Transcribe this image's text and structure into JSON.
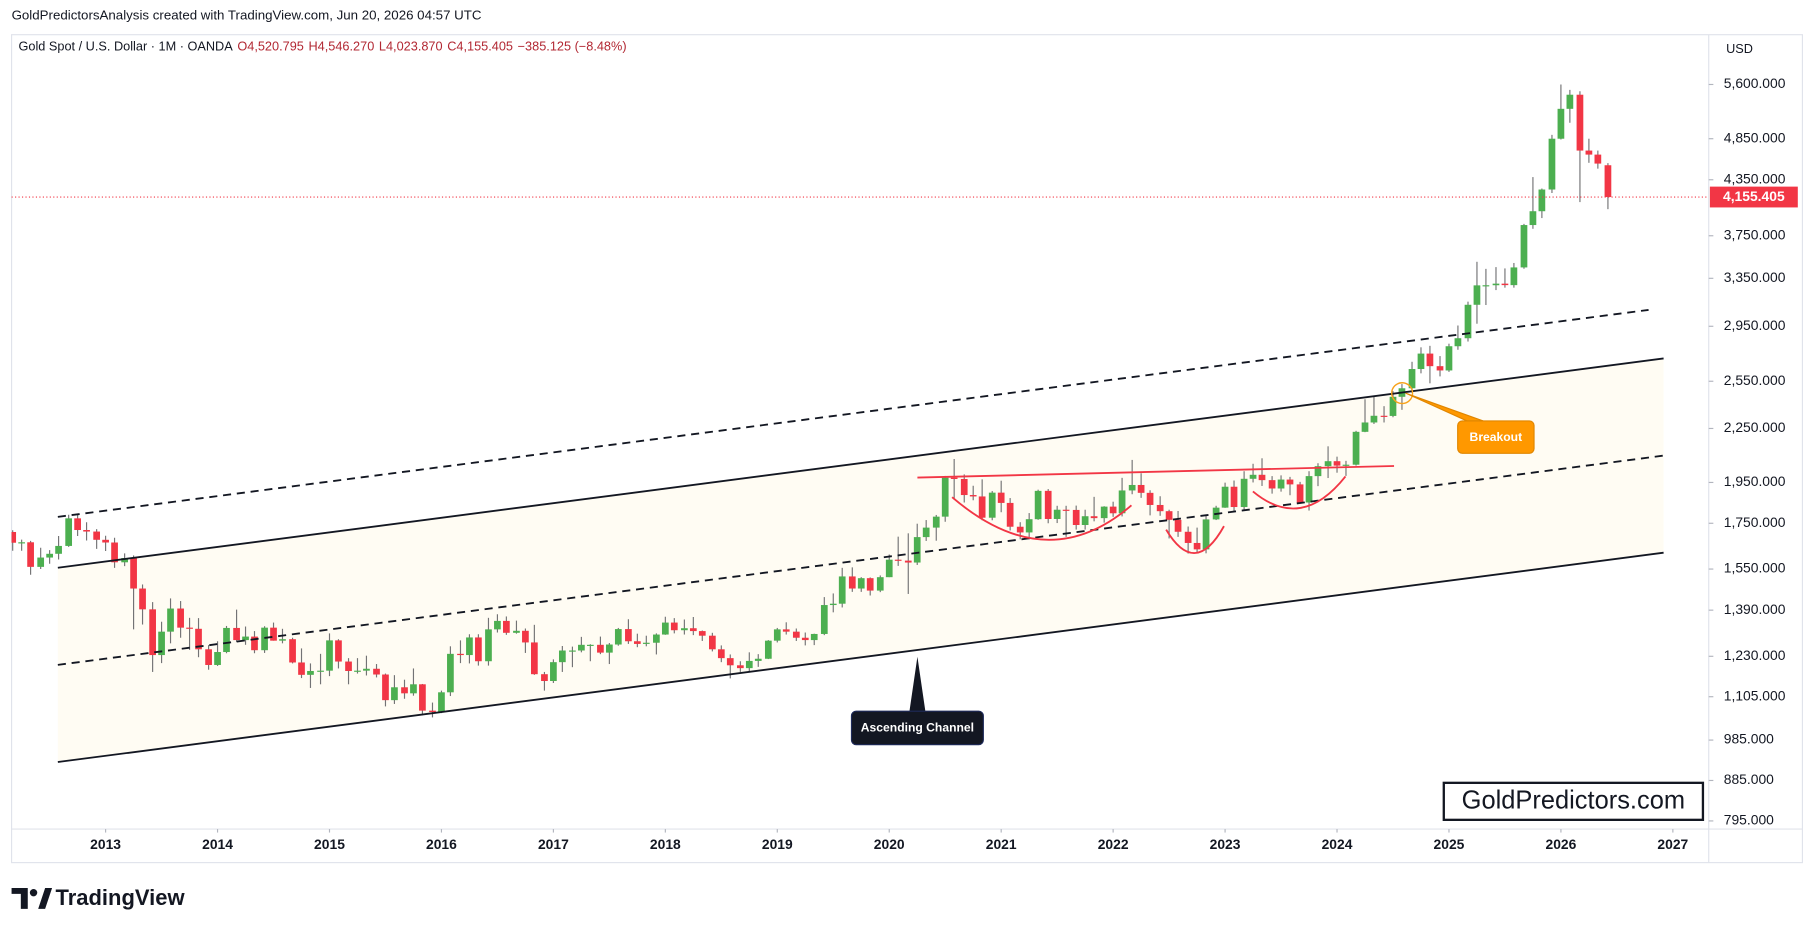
{
  "attribution": "GoldPredictorsAnalysis created with TradingView.com, Jun 20, 2026 04:57 UTC",
  "brand": "TradingView",
  "chart_data": {
    "type": "candlestick",
    "title": "Gold Spot / U.S. Dollar · 1M · OANDA",
    "ohlc_labels": [
      "O4,520.795",
      "H4,546.270",
      "L4,023.870",
      "C4,155.405",
      "−385.125 (−8.48%)"
    ],
    "currency": "USD",
    "last_price_label": "4,155.405",
    "annotations": {
      "breakout": "Breakout",
      "channel": "Ascending Channel",
      "watermark": "GoldPredictors.com"
    },
    "up_color": "#4caf50",
    "down_color": "#f23645",
    "wick_color": "#737375",
    "last_price_color": "#f23645",
    "log_scale": true,
    "grid": false,
    "xlim": [
      2012.16,
      2027.31
    ],
    "xticks": [
      2013,
      2014,
      2015,
      2016,
      2017,
      2018,
      2019,
      2020,
      2021,
      2022,
      2023,
      2024,
      2025,
      2026,
      2027
    ],
    "ylim": [
      778,
      6390
    ],
    "yticks": [
      {
        "value": 795,
        "label": "795.000"
      },
      {
        "value": 885,
        "label": "885.000"
      },
      {
        "value": 985,
        "label": "985.000"
      },
      {
        "value": 1105,
        "label": "1,105.000"
      },
      {
        "value": 1230,
        "label": "1,230.000"
      },
      {
        "value": 1390,
        "label": "1,390.000"
      },
      {
        "value": 1550,
        "label": "1,550.000"
      },
      {
        "value": 1750,
        "label": "1,750.000"
      },
      {
        "value": 1950,
        "label": "1,950.000"
      },
      {
        "value": 2250,
        "label": "2,250.000"
      },
      {
        "value": 2550,
        "label": "2,550.000"
      },
      {
        "value": 2950,
        "label": "2,950.000"
      },
      {
        "value": 3350,
        "label": "3,350.000"
      },
      {
        "value": 3750,
        "label": "3,750.000"
      },
      {
        "value": 4350,
        "label": "4,350.000"
      },
      {
        "value": 4850,
        "label": "4,850.000"
      },
      {
        "value": 5600,
        "label": "5,600.000"
      }
    ],
    "x": [
      2012.17,
      2012.25,
      2012.33,
      2012.42,
      2012.5,
      2012.58,
      2012.67,
      2012.75,
      2012.83,
      2012.92,
      2013,
      2013.08,
      2013.17,
      2013.25,
      2013.33,
      2013.42,
      2013.5,
      2013.58,
      2013.67,
      2013.75,
      2013.83,
      2013.92,
      2014,
      2014.08,
      2014.17,
      2014.25,
      2014.33,
      2014.42,
      2014.5,
      2014.58,
      2014.67,
      2014.75,
      2014.83,
      2014.92,
      2015,
      2015.08,
      2015.17,
      2015.25,
      2015.33,
      2015.42,
      2015.5,
      2015.58,
      2015.67,
      2015.75,
      2015.83,
      2015.92,
      2016,
      2016.08,
      2016.17,
      2016.25,
      2016.33,
      2016.42,
      2016.5,
      2016.58,
      2016.67,
      2016.75,
      2016.83,
      2016.92,
      2017,
      2017.08,
      2017.17,
      2017.25,
      2017.33,
      2017.42,
      2017.5,
      2017.58,
      2017.67,
      2017.75,
      2017.83,
      2017.92,
      2018,
      2018.08,
      2018.17,
      2018.25,
      2018.33,
      2018.42,
      2018.5,
      2018.58,
      2018.67,
      2018.75,
      2018.83,
      2018.92,
      2019,
      2019.08,
      2019.17,
      2019.25,
      2019.33,
      2019.42,
      2019.5,
      2019.58,
      2019.67,
      2019.75,
      2019.83,
      2019.92,
      2020,
      2020.08,
      2020.17,
      2020.25,
      2020.33,
      2020.42,
      2020.5,
      2020.58,
      2020.67,
      2020.75,
      2020.83,
      2020.92,
      2021,
      2021.08,
      2021.17,
      2021.25,
      2021.33,
      2021.42,
      2021.5,
      2021.58,
      2021.67,
      2021.75,
      2021.83,
      2021.92,
      2022,
      2022.08,
      2022.17,
      2022.25,
      2022.33,
      2022.42,
      2022.5,
      2022.58,
      2022.67,
      2022.75,
      2022.83,
      2022.92,
      2023,
      2023.08,
      2023.17,
      2023.25,
      2023.33,
      2023.42,
      2023.5,
      2023.58,
      2023.67,
      2023.75,
      2023.83,
      2023.92,
      2024,
      2024.08,
      2024.17,
      2024.25,
      2024.33,
      2024.42,
      2024.5,
      2024.58,
      2024.67,
      2024.75,
      2024.83,
      2024.92,
      2025,
      2025.08,
      2025.17,
      2025.25,
      2025.33,
      2025.42,
      2025.5,
      2025.58,
      2025.67,
      2025.75,
      2025.83,
      2025.92,
      2026,
      2026.08,
      2026.17,
      2026.25,
      2026.33,
      2026.42
    ],
    "ohlc": [
      [
        1710,
        1718,
        1627,
        1662
      ],
      [
        1662,
        1676,
        1627,
        1664
      ],
      [
        1664,
        1670,
        1527,
        1559
      ],
      [
        1559,
        1640,
        1550,
        1598
      ],
      [
        1598,
        1630,
        1572,
        1614
      ],
      [
        1614,
        1692,
        1590,
        1648
      ],
      [
        1648,
        1790,
        1644,
        1773
      ],
      [
        1773,
        1796,
        1692,
        1719
      ],
      [
        1719,
        1755,
        1672,
        1712
      ],
      [
        1712,
        1723,
        1635,
        1675
      ],
      [
        1675,
        1693,
        1626,
        1663
      ],
      [
        1663,
        1684,
        1555,
        1578
      ],
      [
        1578,
        1616,
        1562,
        1596
      ],
      [
        1596,
        1607,
        1321,
        1472
      ],
      [
        1472,
        1488,
        1338,
        1393
      ],
      [
        1393,
        1420,
        1180,
        1234
      ],
      [
        1234,
        1348,
        1208,
        1313
      ],
      [
        1313,
        1434,
        1273,
        1396
      ],
      [
        1396,
        1424,
        1292,
        1327
      ],
      [
        1327,
        1362,
        1251,
        1323
      ],
      [
        1323,
        1361,
        1227,
        1253
      ],
      [
        1253,
        1267,
        1187,
        1202
      ],
      [
        1202,
        1280,
        1199,
        1244
      ],
      [
        1244,
        1333,
        1240,
        1326
      ],
      [
        1326,
        1392,
        1277,
        1284
      ],
      [
        1284,
        1331,
        1268,
        1296
      ],
      [
        1296,
        1315,
        1240,
        1250
      ],
      [
        1250,
        1332,
        1241,
        1327
      ],
      [
        1327,
        1345,
        1282,
        1282
      ],
      [
        1282,
        1323,
        1273,
        1287
      ],
      [
        1287,
        1292,
        1207,
        1210
      ],
      [
        1210,
        1256,
        1161,
        1171
      ],
      [
        1171,
        1207,
        1131,
        1183
      ],
      [
        1183,
        1238,
        1142,
        1184
      ],
      [
        1184,
        1307,
        1167,
        1283
      ],
      [
        1283,
        1287,
        1191,
        1213
      ],
      [
        1213,
        1224,
        1142,
        1183
      ],
      [
        1183,
        1224,
        1175,
        1184
      ],
      [
        1184,
        1232,
        1169,
        1190
      ],
      [
        1190,
        1205,
        1163,
        1172
      ],
      [
        1172,
        1175,
        1077,
        1095
      ],
      [
        1095,
        1170,
        1084,
        1133
      ],
      [
        1133,
        1156,
        1099,
        1115
      ],
      [
        1115,
        1191,
        1108,
        1142
      ],
      [
        1142,
        1143,
        1052,
        1065
      ],
      [
        1065,
        1088,
        1046,
        1061
      ],
      [
        1061,
        1123,
        1058,
        1118
      ],
      [
        1118,
        1263,
        1107,
        1238
      ],
      [
        1238,
        1283,
        1208,
        1234
      ],
      [
        1234,
        1304,
        1207,
        1293
      ],
      [
        1293,
        1304,
        1200,
        1214
      ],
      [
        1214,
        1362,
        1200,
        1321
      ],
      [
        1321,
        1375,
        1310,
        1351
      ],
      [
        1351,
        1367,
        1302,
        1309
      ],
      [
        1309,
        1352,
        1306,
        1316
      ],
      [
        1316,
        1324,
        1241,
        1276
      ],
      [
        1276,
        1337,
        1171,
        1173
      ],
      [
        1173,
        1180,
        1123,
        1152
      ],
      [
        1152,
        1220,
        1146,
        1211
      ],
      [
        1211,
        1264,
        1180,
        1249
      ],
      [
        1249,
        1262,
        1195,
        1249
      ],
      [
        1249,
        1295,
        1243,
        1268
      ],
      [
        1268,
        1270,
        1214,
        1268
      ],
      [
        1268,
        1296,
        1237,
        1242
      ],
      [
        1242,
        1274,
        1205,
        1269
      ],
      [
        1269,
        1326,
        1265,
        1322
      ],
      [
        1322,
        1357,
        1271,
        1280
      ],
      [
        1280,
        1306,
        1260,
        1271
      ],
      [
        1271,
        1299,
        1263,
        1275
      ],
      [
        1275,
        1307,
        1236,
        1303
      ],
      [
        1303,
        1366,
        1302,
        1345
      ],
      [
        1345,
        1361,
        1307,
        1318
      ],
      [
        1318,
        1356,
        1303,
        1325
      ],
      [
        1325,
        1365,
        1301,
        1315
      ],
      [
        1315,
        1317,
        1281,
        1299
      ],
      [
        1299,
        1309,
        1246,
        1253
      ],
      [
        1253,
        1266,
        1211,
        1224
      ],
      [
        1224,
        1236,
        1160,
        1201
      ],
      [
        1201,
        1214,
        1180,
        1192
      ],
      [
        1192,
        1243,
        1182,
        1215
      ],
      [
        1215,
        1237,
        1196,
        1222
      ],
      [
        1222,
        1284,
        1221,
        1282
      ],
      [
        1282,
        1326,
        1276,
        1321
      ],
      [
        1321,
        1346,
        1303,
        1313
      ],
      [
        1313,
        1324,
        1281,
        1292
      ],
      [
        1292,
        1310,
        1266,
        1284
      ],
      [
        1284,
        1306,
        1267,
        1305
      ],
      [
        1305,
        1439,
        1301,
        1409
      ],
      [
        1409,
        1453,
        1382,
        1414
      ],
      [
        1414,
        1555,
        1400,
        1520
      ],
      [
        1520,
        1557,
        1459,
        1472
      ],
      [
        1472,
        1517,
        1459,
        1513
      ],
      [
        1513,
        1516,
        1445,
        1464
      ],
      [
        1464,
        1524,
        1458,
        1517
      ],
      [
        1517,
        1611,
        1517,
        1589
      ],
      [
        1589,
        1689,
        1563,
        1585
      ],
      [
        1585,
        1704,
        1451,
        1577
      ],
      [
        1577,
        1748,
        1567,
        1687
      ],
      [
        1687,
        1765,
        1670,
        1730
      ],
      [
        1730,
        1789,
        1671,
        1781
      ],
      [
        1781,
        1984,
        1757,
        1975
      ],
      [
        1975,
        2075,
        1863,
        1968
      ],
      [
        1968,
        1992,
        1849,
        1886
      ],
      [
        1886,
        1933,
        1860,
        1879
      ],
      [
        1879,
        1966,
        1764,
        1776
      ],
      [
        1776,
        1906,
        1764,
        1898
      ],
      [
        1898,
        1959,
        1802,
        1847
      ],
      [
        1847,
        1871,
        1717,
        1734
      ],
      [
        1734,
        1755,
        1677,
        1708
      ],
      [
        1708,
        1798,
        1677,
        1769
      ],
      [
        1769,
        1913,
        1766,
        1907
      ],
      [
        1907,
        1916,
        1750,
        1770
      ],
      [
        1770,
        1833,
        1751,
        1814
      ],
      [
        1814,
        1833,
        1688,
        1813
      ],
      [
        1813,
        1834,
        1721,
        1742
      ],
      [
        1742,
        1814,
        1721,
        1783
      ],
      [
        1783,
        1877,
        1759,
        1774
      ],
      [
        1774,
        1831,
        1753,
        1829
      ],
      [
        1829,
        1853,
        1780,
        1797
      ],
      [
        1797,
        1974,
        1782,
        1909
      ],
      [
        1909,
        2070,
        1890,
        1937
      ],
      [
        1937,
        1998,
        1872,
        1897
      ],
      [
        1897,
        1910,
        1787,
        1837
      ],
      [
        1837,
        1880,
        1785,
        1807
      ],
      [
        1807,
        1814,
        1681,
        1766
      ],
      [
        1766,
        1808,
        1688,
        1711
      ],
      [
        1711,
        1735,
        1615,
        1661
      ],
      [
        1661,
        1730,
        1617,
        1633
      ],
      [
        1633,
        1786,
        1616,
        1768
      ],
      [
        1768,
        1833,
        1765,
        1824
      ],
      [
        1824,
        1949,
        1823,
        1928
      ],
      [
        1928,
        1960,
        1805,
        1827
      ],
      [
        1827,
        2009,
        1810,
        1969
      ],
      [
        1969,
        2049,
        1950,
        1990
      ],
      [
        1990,
        2079,
        1932,
        1962
      ],
      [
        1962,
        1983,
        1893,
        1919
      ],
      [
        1919,
        1987,
        1903,
        1965
      ],
      [
        1965,
        1979,
        1885,
        1940
      ],
      [
        1940,
        1953,
        1846,
        1849
      ],
      [
        1849,
        2009,
        1810,
        1983
      ],
      [
        1983,
        2052,
        1931,
        2036
      ],
      [
        2036,
        2146,
        1973,
        2063
      ],
      [
        2063,
        2088,
        2001,
        2039
      ],
      [
        2039,
        2065,
        1984,
        2044
      ],
      [
        2044,
        2236,
        2039,
        2230
      ],
      [
        2230,
        2431,
        2228,
        2286
      ],
      [
        2286,
        2450,
        2277,
        2327
      ],
      [
        2327,
        2387,
        2286,
        2326
      ],
      [
        2326,
        2484,
        2318,
        2447
      ],
      [
        2447,
        2531,
        2364,
        2503
      ],
      [
        2503,
        2685,
        2472,
        2634
      ],
      [
        2634,
        2790,
        2604,
        2744
      ],
      [
        2744,
        2801,
        2536,
        2654
      ],
      [
        2654,
        2726,
        2583,
        2624
      ],
      [
        2624,
        2817,
        2614,
        2798
      ],
      [
        2798,
        2956,
        2772,
        2858
      ],
      [
        2858,
        3149,
        2833,
        3123
      ],
      [
        3123,
        3500,
        2970,
        3288
      ],
      [
        3288,
        3435,
        3121,
        3289
      ],
      [
        3289,
        3451,
        3247,
        3303
      ],
      [
        3303,
        3439,
        3268,
        3290
      ],
      [
        3290,
        3489,
        3268,
        3448
      ],
      [
        3448,
        3870,
        3436,
        3858
      ],
      [
        3858,
        4381,
        3820,
        4002
      ],
      [
        4002,
        4250,
        3930,
        4239
      ],
      [
        4239,
        4900,
        4200,
        4850
      ],
      [
        4850,
        5600,
        4840,
        5250
      ],
      [
        5250,
        5520,
        5060,
        5450
      ],
      [
        5450,
        5500,
        4100,
        4700
      ],
      [
        4700,
        4850,
        4550,
        4650
      ],
      [
        4650,
        4700,
        4480,
        4540.53
      ],
      [
        4520.795,
        4546.27,
        4023.87,
        4155.405
      ]
    ]
  }
}
